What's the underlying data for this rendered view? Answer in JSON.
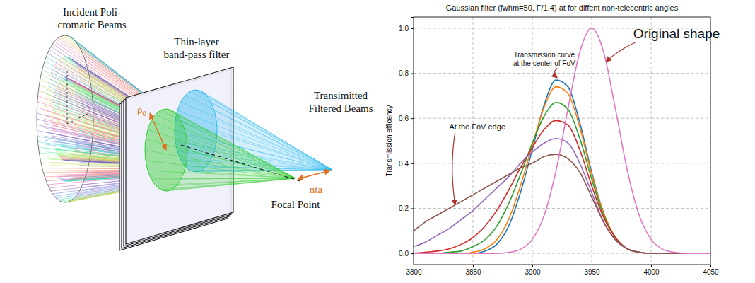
{
  "diagram": {
    "labels": [
      "Incident Poli-\ncromatic Beams",
      "Thin-layer\nband-pass filter",
      "Transimitted\nFiltered Beams",
      "ρ0",
      "nta",
      "Focal Point"
    ]
  },
  "chart_data": {
    "type": "line",
    "title": "Gaussian filter (fwhm=50, F/1.4) at for diffent non-telecentric angles",
    "y_label": "Transmission efficency",
    "x": [
      3800,
      3810,
      3820,
      3830,
      3840,
      3850,
      3860,
      3870,
      3880,
      3890,
      3900,
      3910,
      3920,
      3930,
      3940,
      3950,
      3960,
      3970,
      3980,
      3990,
      4000,
      4010,
      4020,
      4030,
      4040,
      4050
    ],
    "xlim": [
      3800,
      4050
    ],
    "xticks": [
      3800,
      3850,
      3900,
      3950,
      4000,
      4050
    ],
    "ylim": [
      -0.05,
      1.05
    ],
    "yticks": [
      {
        "value": 0,
        "label": "0.0"
      },
      {
        "value": 0.2,
        "label": "0.2"
      },
      {
        "value": 0.4,
        "label": "0.4"
      },
      {
        "value": 0.6,
        "label": "0.6"
      },
      {
        "value": 0.8,
        "label": "0.8"
      },
      {
        "value": 1,
        "label": "1.0"
      }
    ],
    "grid": true,
    "series": [
      {
        "color": "#1f77b4",
        "values": [
          0,
          0,
          0,
          0,
          0,
          0,
          0.01,
          0.04,
          0.12,
          0.27,
          0.46,
          0.66,
          0.77,
          0.74,
          0.58,
          0.36,
          0.18,
          0.07,
          0.02,
          0.005,
          0,
          0,
          0,
          0,
          0,
          0
        ]
      },
      {
        "color": "#ff7f0e",
        "values": [
          0,
          0,
          0,
          0,
          0,
          0.005,
          0.02,
          0.06,
          0.15,
          0.3,
          0.48,
          0.65,
          0.74,
          0.71,
          0.56,
          0.35,
          0.18,
          0.07,
          0.02,
          0.005,
          0,
          0,
          0,
          0,
          0,
          0
        ]
      },
      {
        "color": "#2ca02c",
        "values": [
          0,
          0,
          0,
          0.005,
          0.01,
          0.03,
          0.06,
          0.12,
          0.22,
          0.35,
          0.49,
          0.61,
          0.67,
          0.64,
          0.51,
          0.33,
          0.17,
          0.07,
          0.02,
          0.005,
          0,
          0,
          0,
          0,
          0,
          0
        ]
      },
      {
        "color": "#d62728",
        "values": [
          0,
          0.005,
          0.01,
          0.02,
          0.04,
          0.07,
          0.12,
          0.19,
          0.28,
          0.38,
          0.47,
          0.55,
          0.59,
          0.57,
          0.46,
          0.3,
          0.16,
          0.07,
          0.02,
          0.005,
          0,
          0,
          0,
          0,
          0,
          0
        ]
      },
      {
        "color": "#9467bd",
        "values": [
          0.03,
          0.05,
          0.08,
          0.11,
          0.15,
          0.19,
          0.24,
          0.29,
          0.34,
          0.4,
          0.45,
          0.49,
          0.51,
          0.49,
          0.4,
          0.27,
          0.14,
          0.06,
          0.02,
          0.005,
          0,
          0,
          0,
          0,
          0,
          0
        ]
      },
      {
        "color": "#8c564b",
        "values": [
          0.1,
          0.14,
          0.17,
          0.2,
          0.23,
          0.26,
          0.29,
          0.32,
          0.35,
          0.38,
          0.4,
          0.43,
          0.44,
          0.42,
          0.36,
          0.25,
          0.14,
          0.06,
          0.02,
          0.005,
          0,
          0,
          0,
          0,
          0,
          0
        ]
      },
      {
        "color": "#e377c2",
        "values": [
          0,
          0,
          0,
          0,
          0,
          0,
          0,
          0,
          0.004,
          0.018,
          0.062,
          0.169,
          0.368,
          0.641,
          0.895,
          1.0,
          0.895,
          0.641,
          0.368,
          0.169,
          0.062,
          0.018,
          0.004,
          0,
          0,
          0
        ]
      }
    ],
    "annotations": [
      {
        "text": "Original shape",
        "x": 3962,
        "y": 0.85,
        "text_x": 3985,
        "text_y": 0.955
      },
      {
        "text": "Transmission curve\nat the center of FoV",
        "x": 3921,
        "y": 0.78,
        "text_x": 3910,
        "text_y": 0.87
      },
      {
        "text": "At the FoV edge",
        "x": 3835,
        "y": 0.215,
        "text_x": 3830,
        "text_y": 0.55
      }
    ]
  }
}
